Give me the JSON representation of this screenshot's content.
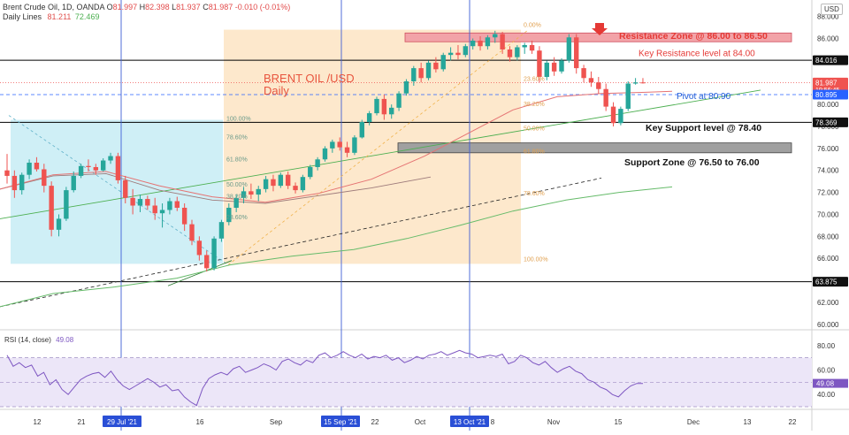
{
  "header": {
    "symbol": "Brent Crude Oil, 1D, OANDA",
    "ohlc": [
      {
        "k": "O",
        "v": "81.997",
        "color": "#e24a4a"
      },
      {
        "k": "H",
        "v": "82.398",
        "color": "#e24a4a"
      },
      {
        "k": "L",
        "v": "81.937",
        "color": "#e24a4a"
      },
      {
        "k": "C",
        "v": "81.987",
        "color": "#e24a4a"
      }
    ],
    "change": "-0.010 (-0.01%)",
    "indicator_label": "Daily Lines",
    "indicator_values": [
      {
        "v": "81.211",
        "color": "#e0524f"
      },
      {
        "v": "72.469",
        "color": "#4caf50"
      }
    ]
  },
  "currency": "USD",
  "title_line1": "BRENT OIL /USD",
  "title_line2": "Daily",
  "colors": {
    "up": "#26a69a",
    "down": "#ef5350",
    "ma_fast": "#e57373",
    "ma_mid": "#9e7b7b",
    "ma_slow": "#66bb6a",
    "trend": "#4caf50",
    "resistance_zone": "#f2a3a8",
    "support_zone": "#a0a0a0",
    "fib_box_blue": "#cfeff6",
    "fib_box_orange": "#fde8cc",
    "label_blue": "#1e5bd6",
    "label_red": "#e53935",
    "price_tag_red": "#ef5350",
    "price_tag_blue": "#2962ff"
  },
  "annotations": {
    "resistance_zone": "Resistance Zone @ 86.00 to 86.50",
    "key_resistance": "Key Resistance level at 84.00",
    "pivot": "Pivot at 80.90",
    "key_support": "Key Support level @ 78.40",
    "support_zone": "Support Zone @ 76.50 to 76.00"
  },
  "price_tags": [
    {
      "value": "84.016",
      "style": "black"
    },
    {
      "value": "81.987",
      "sub": "19:56:45",
      "style": "red"
    },
    {
      "value": "80.895",
      "style": "blue"
    },
    {
      "value": "78.369",
      "style": "black"
    },
    {
      "value": "63.875",
      "style": "black"
    }
  ],
  "fib_left": [
    {
      "label": "100.00%"
    },
    {
      "label": "78.60%"
    },
    {
      "label": "61.80%"
    },
    {
      "label": "50.00%"
    },
    {
      "label": "38.20%"
    },
    {
      "label": "23.60%"
    }
  ],
  "fib_right": [
    {
      "label": "0.00%"
    },
    {
      "label": "23.60%"
    },
    {
      "label": "38.20%"
    },
    {
      "label": "50.00%"
    },
    {
      "label": "61.80%"
    },
    {
      "label": "78.60%"
    },
    {
      "label": "100.00%"
    }
  ],
  "rsi": {
    "label": "RSI (14, close)",
    "value": "49.08",
    "levels": [
      "80.00",
      "60.00",
      "40.00"
    ],
    "values": [
      72,
      63,
      66,
      62,
      64,
      55,
      58,
      48,
      52,
      44,
      40,
      46,
      52,
      55,
      57,
      58,
      54,
      59,
      52,
      47,
      44,
      47,
      50,
      53,
      50,
      46,
      48,
      43,
      44,
      38,
      34,
      31,
      45,
      53,
      56,
      58,
      56,
      61,
      63,
      58,
      60,
      62,
      65,
      63,
      60,
      67,
      69,
      66,
      64,
      68,
      66,
      72,
      74,
      70,
      72,
      75,
      72,
      70,
      73,
      69,
      71,
      70,
      72,
      68,
      70,
      66,
      68,
      71,
      69,
      72,
      73,
      75,
      72,
      74,
      76,
      74,
      73,
      70,
      71,
      72,
      71,
      73,
      65,
      67,
      72,
      70,
      66,
      64,
      67,
      62,
      58,
      61,
      63,
      59,
      57,
      52,
      50,
      46,
      44,
      40,
      38,
      43,
      47,
      49,
      49
    ]
  },
  "x_axis": {
    "labels": [
      "12",
      "21",
      "29 Jul '21",
      "16",
      "Sep",
      "15 Sep '21",
      "22",
      "Oct",
      "13 Oct '21",
      "8",
      "Nov",
      "15",
      "Dec",
      "13",
      "22"
    ],
    "highlighted": [
      "29 Jul '21",
      "15 Sep '21",
      "13 Oct '21"
    ]
  },
  "y_axis": {
    "labels": [
      "88.000",
      "86.000",
      "84.000",
      "82.000",
      "80.000",
      "78.000",
      "76.000",
      "74.000",
      "72.000",
      "70.000",
      "68.000",
      "66.000",
      "64.000",
      "62.000",
      "60.000"
    ]
  },
  "chart_data": {
    "type": "candlestick",
    "title": "BRENT OIL /USD",
    "subtitle": "Daily",
    "ylim": [
      59.5,
      89.5
    ],
    "candles": [
      [
        74.0,
        75.5,
        72.8,
        73.5
      ],
      [
        73.5,
        74.0,
        71.5,
        72.2
      ],
      [
        72.2,
        73.8,
        71.8,
        73.6
      ],
      [
        73.6,
        75.0,
        73.2,
        74.7
      ],
      [
        74.7,
        75.2,
        73.9,
        74.1
      ],
      [
        74.1,
        74.6,
        72.0,
        72.6
      ],
      [
        72.6,
        73.0,
        68.0,
        68.6
      ],
      [
        68.6,
        70.0,
        68.0,
        69.6
      ],
      [
        69.6,
        72.5,
        69.4,
        72.2
      ],
      [
        72.2,
        73.9,
        72.0,
        73.5
      ],
      [
        73.5,
        74.6,
        73.3,
        74.4
      ],
      [
        74.4,
        75.0,
        73.9,
        74.3
      ],
      [
        74.3,
        74.6,
        73.6,
        74.0
      ],
      [
        74.0,
        75.1,
        73.9,
        74.9
      ],
      [
        74.9,
        75.6,
        74.6,
        75.3
      ],
      [
        75.3,
        75.6,
        72.8,
        73.1
      ],
      [
        73.1,
        73.5,
        71.0,
        71.5
      ],
      [
        71.5,
        72.3,
        70.0,
        70.8
      ],
      [
        70.8,
        71.8,
        70.2,
        71.4
      ],
      [
        71.4,
        71.7,
        70.4,
        70.8
      ],
      [
        70.8,
        71.5,
        69.5,
        70.1
      ],
      [
        70.1,
        71.0,
        68.8,
        70.4
      ],
      [
        70.4,
        71.5,
        70.0,
        71.2
      ],
      [
        71.2,
        71.6,
        70.3,
        70.6
      ],
      [
        70.6,
        71.0,
        68.5,
        69.1
      ],
      [
        69.1,
        69.5,
        67.2,
        67.6
      ],
      [
        67.6,
        68.0,
        65.8,
        66.3
      ],
      [
        66.3,
        66.7,
        64.8,
        65.1
      ],
      [
        65.1,
        68.0,
        64.9,
        67.8
      ],
      [
        67.8,
        69.5,
        67.5,
        69.3
      ],
      [
        69.3,
        71.0,
        69.0,
        70.6
      ],
      [
        70.6,
        71.8,
        70.2,
        71.5
      ],
      [
        71.5,
        72.5,
        71.0,
        72.1
      ],
      [
        72.1,
        72.8,
        71.4,
        71.8
      ],
      [
        71.8,
        72.6,
        71.2,
        72.3
      ],
      [
        72.3,
        73.5,
        72.0,
        73.2
      ],
      [
        73.2,
        73.6,
        72.1,
        72.6
      ],
      [
        72.6,
        73.8,
        72.4,
        73.6
      ],
      [
        73.6,
        73.9,
        72.3,
        72.6
      ],
      [
        72.6,
        72.9,
        71.9,
        72.2
      ],
      [
        72.2,
        73.6,
        72.0,
        73.4
      ],
      [
        73.4,
        74.5,
        73.2,
        74.3
      ],
      [
        74.3,
        75.2,
        74.0,
        75.0
      ],
      [
        75.0,
        76.2,
        74.8,
        76.0
      ],
      [
        76.0,
        76.8,
        75.6,
        76.6
      ],
      [
        76.6,
        77.0,
        75.8,
        76.1
      ],
      [
        76.1,
        76.6,
        75.2,
        75.6
      ],
      [
        75.6,
        77.2,
        75.4,
        77.0
      ],
      [
        77.0,
        78.6,
        76.9,
        78.4
      ],
      [
        78.4,
        79.4,
        78.1,
        79.2
      ],
      [
        79.2,
        80.7,
        79.0,
        80.5
      ],
      [
        80.5,
        80.9,
        78.6,
        79.1
      ],
      [
        79.1,
        80.0,
        78.7,
        79.7
      ],
      [
        79.7,
        81.2,
        79.4,
        81.0
      ],
      [
        81.0,
        82.3,
        80.8,
        82.1
      ],
      [
        82.1,
        83.5,
        81.7,
        83.3
      ],
      [
        83.3,
        83.8,
        82.0,
        82.4
      ],
      [
        82.4,
        84.0,
        82.2,
        83.8
      ],
      [
        83.8,
        84.3,
        82.9,
        83.2
      ],
      [
        83.2,
        84.7,
        83.0,
        84.5
      ],
      [
        84.5,
        85.2,
        84.0,
        84.7
      ],
      [
        84.7,
        85.4,
        84.1,
        84.5
      ],
      [
        84.5,
        85.5,
        84.3,
        85.3
      ],
      [
        85.3,
        86.0,
        85.0,
        85.8
      ],
      [
        85.8,
        86.2,
        84.9,
        85.3
      ],
      [
        85.3,
        86.3,
        85.0,
        86.1
      ],
      [
        86.1,
        86.7,
        85.6,
        86.4
      ],
      [
        86.4,
        86.6,
        84.6,
        85.0
      ],
      [
        85.0,
        85.3,
        83.9,
        84.3
      ],
      [
        84.3,
        85.4,
        84.0,
        85.2
      ],
      [
        85.2,
        85.6,
        84.6,
        85.4
      ],
      [
        85.4,
        85.8,
        84.6,
        84.9
      ],
      [
        84.9,
        85.3,
        82.0,
        82.5
      ],
      [
        82.5,
        84.0,
        82.2,
        83.8
      ],
      [
        83.8,
        84.3,
        82.6,
        83.0
      ],
      [
        83.0,
        84.2,
        82.8,
        84.0
      ],
      [
        84.0,
        86.4,
        83.8,
        86.1
      ],
      [
        86.1,
        86.4,
        82.8,
        83.3
      ],
      [
        83.3,
        83.6,
        82.0,
        82.4
      ],
      [
        82.4,
        83.0,
        81.6,
        82.0
      ],
      [
        82.0,
        82.5,
        81.0,
        81.4
      ],
      [
        81.4,
        81.9,
        79.4,
        79.8
      ],
      [
        79.8,
        80.2,
        78.0,
        78.3
      ],
      [
        78.3,
        79.8,
        78.1,
        79.6
      ],
      [
        79.6,
        82.1,
        79.4,
        81.9
      ],
      [
        81.9,
        82.4,
        81.8,
        82.0
      ],
      [
        82.0,
        82.4,
        81.9,
        81.99
      ]
    ]
  }
}
